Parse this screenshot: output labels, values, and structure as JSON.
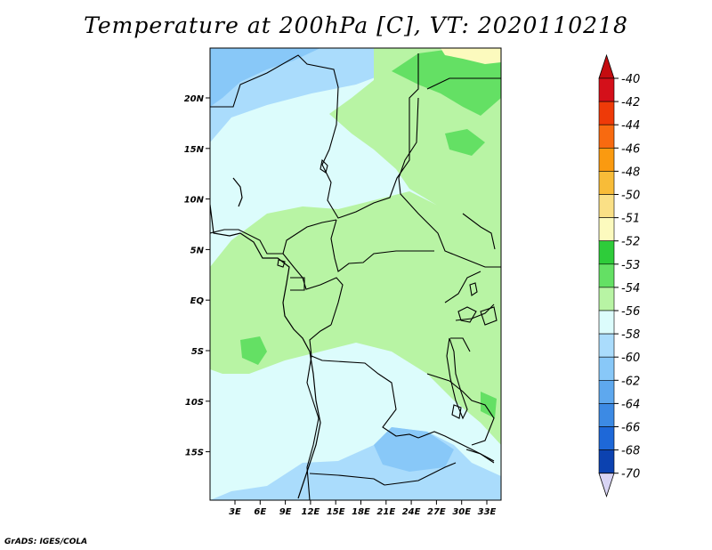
{
  "title": "Temperature at 200hPa [C], VT: 2020110218",
  "footer": "GrADS: IGES/COLA",
  "map": {
    "lat_ticks": [
      "20N",
      "15N",
      "10N",
      "5N",
      "EQ",
      "5S",
      "10S",
      "15S"
    ],
    "lon_ticks": [
      "3E",
      "6E",
      "9E",
      "12E",
      "15E",
      "18E",
      "21E",
      "24E",
      "27E",
      "30E",
      "33E"
    ]
  },
  "colorbar": {
    "labels": [
      "-40",
      "-42",
      "-44",
      "-46",
      "-48",
      "-50",
      "-51",
      "-52",
      "-53",
      "-54",
      "-56",
      "-58",
      "-60",
      "-62",
      "-64",
      "-66",
      "-68",
      "-70"
    ],
    "colors": [
      "#d4101a",
      "#ee3a08",
      "#f86a10",
      "#fa9a10",
      "#f8bc38",
      "#fae086",
      "#fcfabe",
      "#2ecc3a",
      "#64e064",
      "#b8f4a4",
      "#dcfcfc",
      "#aadcfc",
      "#88c8f8",
      "#5ea8ee",
      "#3c8ae4",
      "#1e68d8",
      "#0c42b0",
      "#06197e"
    ],
    "top_arrow_color": "#c40c10",
    "bottom_arrow_color": "#d8d4f4"
  }
}
